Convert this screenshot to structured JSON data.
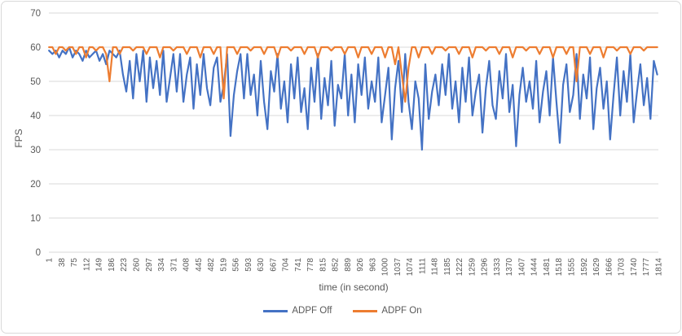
{
  "chart": {
    "y_axis_title": "FPS",
    "x_axis_title": "time (in second)"
  },
  "colors": {
    "background": "#FFFFFF",
    "frame_border": "#D9D9D9",
    "gridline": "#D9D9D9",
    "axis_text": "#595959",
    "series_blue": "#4472C4",
    "series_orange": "#ED7D31"
  },
  "chart_data": {
    "type": "line",
    "title": "",
    "xlabel": "time (in second)",
    "ylabel": "FPS",
    "ylim": [
      0,
      70
    ],
    "y_ticks": [
      0,
      10,
      20,
      30,
      40,
      50,
      60,
      70
    ],
    "grid": true,
    "legend_position": "bottom",
    "x_total_categories": 1814,
    "x_tick_labels": [
      1,
      38,
      75,
      112,
      149,
      186,
      223,
      260,
      297,
      334,
      371,
      408,
      445,
      482,
      519,
      556,
      593,
      630,
      667,
      704,
      741,
      778,
      815,
      852,
      889,
      926,
      963,
      1000,
      1037,
      1074,
      1111,
      1148,
      1185,
      1222,
      1259,
      1296,
      1333,
      1370,
      1407,
      1444,
      1481,
      1518,
      1555,
      1592,
      1629,
      1666,
      1703,
      1740,
      1777,
      1814
    ],
    "sample_x_start": 1,
    "sample_x_step": 10,
    "series": [
      {
        "name": "ADPF Off",
        "color": "#4472C4",
        "values": [
          59,
          58,
          59,
          57,
          59,
          58,
          60,
          57,
          59,
          58,
          56,
          59,
          57,
          58,
          59,
          56,
          58,
          55,
          59,
          58,
          57,
          59,
          52,
          47,
          56,
          45,
          58,
          50,
          59,
          44,
          57,
          48,
          56,
          46,
          59,
          44,
          51,
          58,
          47,
          58,
          44,
          52,
          57,
          42,
          55,
          46,
          58,
          48,
          43,
          54,
          57,
          44,
          49,
          58,
          34,
          46,
          53,
          58,
          45,
          58,
          46,
          52,
          40,
          56,
          44,
          36,
          53,
          47,
          58,
          42,
          50,
          38,
          55,
          45,
          57,
          41,
          48,
          36,
          54,
          44,
          58,
          39,
          51,
          43,
          56,
          37,
          49,
          45,
          58,
          40,
          52,
          38,
          55,
          46,
          57,
          42,
          50,
          44,
          57,
          38,
          46,
          54,
          33,
          48,
          56,
          41,
          58,
          44,
          36,
          50,
          45,
          30,
          55,
          39,
          47,
          52,
          43,
          55,
          46,
          58,
          42,
          50,
          38,
          54,
          44,
          57,
          40,
          47,
          52,
          35,
          48,
          56,
          43,
          39,
          53,
          45,
          58,
          41,
          49,
          31,
          46,
          54,
          44,
          50,
          42,
          56,
          38,
          47,
          53,
          40,
          57,
          44,
          32,
          49,
          55,
          41,
          46,
          58,
          39,
          52,
          45,
          57,
          36,
          48,
          54,
          42,
          50,
          33,
          46,
          57,
          40,
          53,
          44,
          58,
          38,
          47,
          55,
          43,
          51,
          39,
          56,
          52
        ]
      },
      {
        "name": "ADPF On",
        "color": "#ED7D31",
        "values": [
          60,
          60,
          58,
          60,
          60,
          59,
          60,
          60,
          58,
          60,
          60,
          57,
          60,
          60,
          59,
          60,
          60,
          58,
          50,
          60,
          60,
          58,
          60,
          60,
          60,
          59,
          60,
          60,
          60,
          58,
          60,
          60,
          60,
          57,
          60,
          60,
          60,
          59,
          60,
          60,
          60,
          58,
          60,
          60,
          60,
          57,
          60,
          60,
          60,
          58,
          60,
          60,
          45,
          60,
          60,
          60,
          58,
          60,
          60,
          60,
          59,
          60,
          60,
          60,
          58,
          60,
          60,
          60,
          57,
          60,
          60,
          60,
          59,
          60,
          60,
          60,
          58,
          60,
          60,
          60,
          57,
          60,
          60,
          60,
          59,
          60,
          60,
          60,
          58,
          60,
          60,
          60,
          57,
          60,
          60,
          60,
          58,
          60,
          60,
          60,
          57,
          60,
          60,
          55,
          60,
          52,
          44,
          54,
          60,
          60,
          57,
          60,
          60,
          60,
          58,
          60,
          60,
          60,
          59,
          60,
          60,
          60,
          58,
          60,
          60,
          60,
          57,
          60,
          60,
          60,
          59,
          60,
          60,
          60,
          58,
          60,
          60,
          60,
          57,
          60,
          60,
          60,
          59,
          60,
          60,
          60,
          58,
          60,
          60,
          60,
          57,
          60,
          60,
          60,
          58,
          60,
          60,
          50,
          60,
          60,
          60,
          58,
          60,
          60,
          60,
          57,
          60,
          60,
          60,
          59,
          60,
          60,
          60,
          58,
          60,
          60,
          60,
          59,
          60,
          60,
          60,
          60
        ]
      }
    ]
  }
}
